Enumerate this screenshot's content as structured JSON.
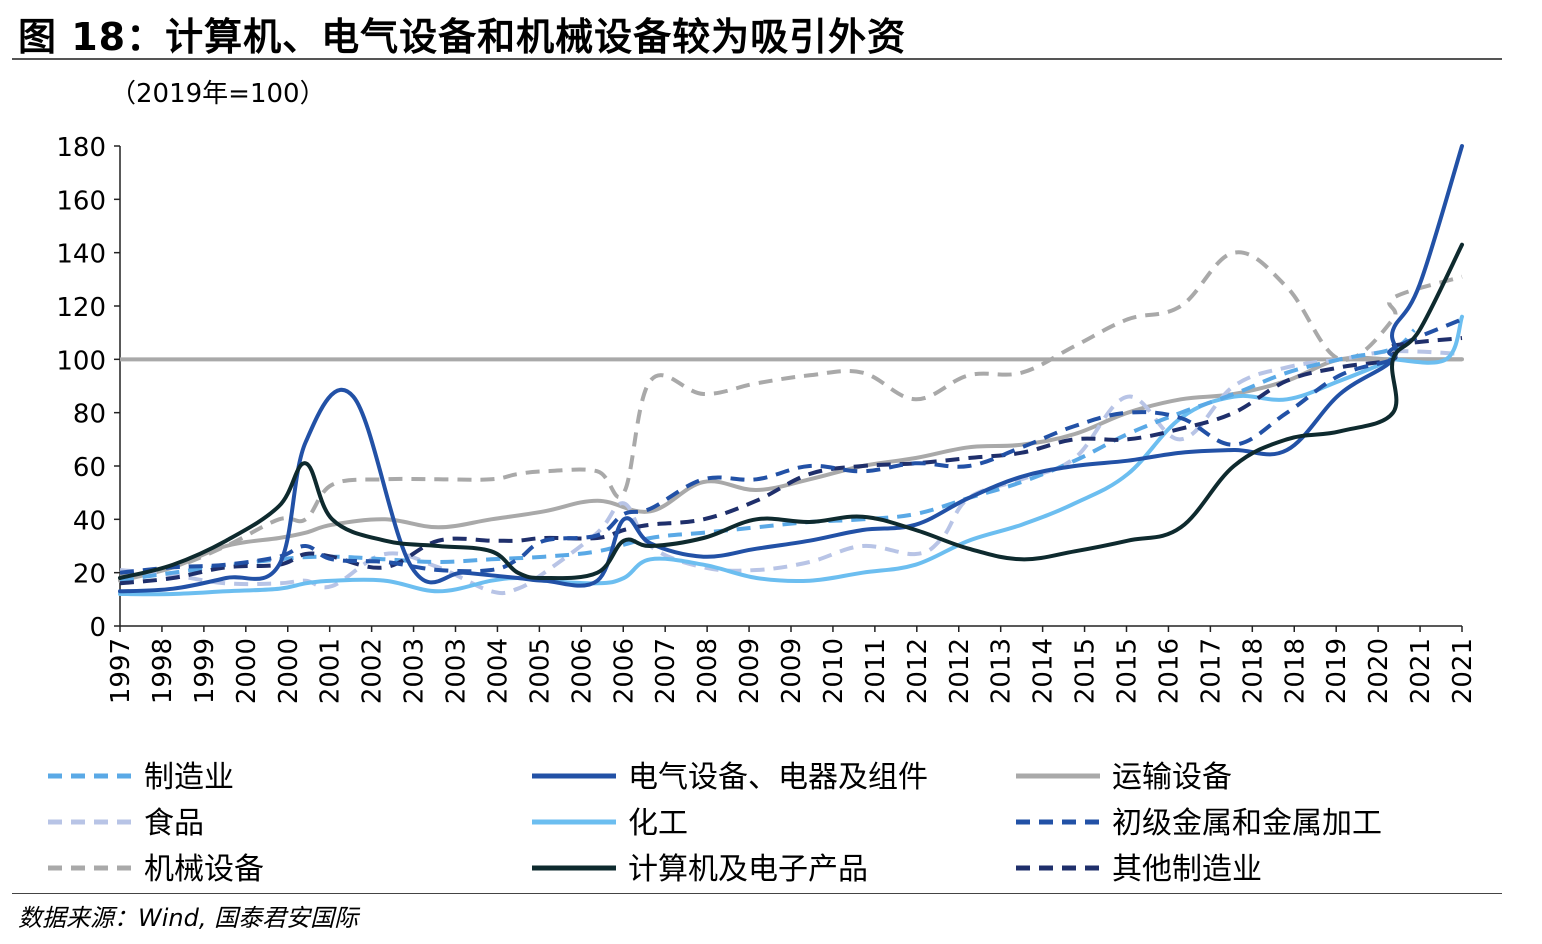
{
  "figure_title": "图 18：计算机、电气设备和机械设备较为吸引外资",
  "source": "数据来源：Wind, 国泰君安国际",
  "chart_data": {
    "type": "line",
    "unit_label": "（2019年=100）",
    "ylim": [
      0,
      180
    ],
    "yticks": [
      0,
      20,
      40,
      60,
      80,
      100,
      120,
      140,
      160,
      180
    ],
    "x_tick_labels": [
      "1997",
      "1998",
      "1999",
      "2000",
      "2000",
      "2001",
      "2002",
      "2003",
      "2003",
      "2004",
      "2005",
      "2006",
      "2006",
      "2007",
      "2008",
      "2009",
      "2009",
      "2010",
      "2011",
      "2012",
      "2012",
      "2013",
      "2014",
      "2015",
      "2015",
      "2016",
      "2017",
      "2018",
      "2018",
      "2019",
      "2020",
      "2021",
      "2021"
    ],
    "x": [
      1997,
      1998,
      1999,
      2000,
      2001,
      2002,
      2003,
      2004,
      2005,
      2006,
      2007,
      2008,
      2009,
      2010,
      2011,
      2012,
      2013,
      2014,
      2015,
      2016,
      2017,
      2018,
      2019,
      2020,
      2021
    ],
    "reference_line": 100,
    "series": [
      {
        "name": "制造业",
        "color": "#5AA9E6",
        "dash": "dashed",
        "points": [
          [
            1997,
            17
          ],
          [
            1998,
            20
          ],
          [
            2000,
            25
          ],
          [
            2001,
            26
          ],
          [
            2002,
            25
          ],
          [
            2003,
            24
          ],
          [
            2004,
            25
          ],
          [
            2005,
            26
          ],
          [
            2006,
            28
          ],
          [
            2007,
            33
          ],
          [
            2008,
            35
          ],
          [
            2009,
            37
          ],
          [
            2010,
            39
          ],
          [
            2011,
            40
          ],
          [
            2012,
            42
          ],
          [
            2013,
            48
          ],
          [
            2014,
            54
          ],
          [
            2015,
            62
          ],
          [
            2016,
            72
          ],
          [
            2017,
            80
          ],
          [
            2018,
            87
          ],
          [
            2019,
            95
          ],
          [
            2020,
            100
          ],
          [
            2021,
            104
          ],
          [
            2021.4,
            111
          ]
        ]
      },
      {
        "name": "电气设备、电器及组件",
        "color": "#2251A6",
        "dash": "solid",
        "points": [
          [
            1997,
            13
          ],
          [
            1998,
            14
          ],
          [
            1999,
            18
          ],
          [
            2000,
            23
          ],
          [
            2000.5,
            69
          ],
          [
            2001.4,
            86
          ],
          [
            2002.5,
            22
          ],
          [
            2003.5,
            20
          ],
          [
            2004.5,
            18
          ],
          [
            2005,
            17
          ],
          [
            2006,
            17
          ],
          [
            2006.5,
            40
          ],
          [
            2007,
            31
          ],
          [
            2008,
            26
          ],
          [
            2009,
            29
          ],
          [
            2010,
            32
          ],
          [
            2011,
            36
          ],
          [
            2012,
            38
          ],
          [
            2013,
            48
          ],
          [
            2014,
            56
          ],
          [
            2015,
            60
          ],
          [
            2016,
            62
          ],
          [
            2017,
            65
          ],
          [
            2018,
            66
          ],
          [
            2019,
            66
          ],
          [
            2020,
            87
          ],
          [
            2021,
            100
          ],
          [
            2021,
            111
          ],
          [
            2021.5,
            128
          ],
          [
            2022.3,
            180
          ]
        ]
      },
      {
        "name": "运输设备",
        "color": "#A9A9A9",
        "dash": "solid",
        "points": [
          [
            1997,
            17
          ],
          [
            1998,
            22
          ],
          [
            1999,
            30
          ],
          [
            2000,
            33
          ],
          [
            2000.5,
            35
          ],
          [
            2001,
            38
          ],
          [
            2002,
            40
          ],
          [
            2003,
            37
          ],
          [
            2004,
            40
          ],
          [
            2005,
            43
          ],
          [
            2006,
            47
          ],
          [
            2007,
            43
          ],
          [
            2008,
            54
          ],
          [
            2009,
            51
          ],
          [
            2010,
            55
          ],
          [
            2011,
            60
          ],
          [
            2012,
            63
          ],
          [
            2013,
            67
          ],
          [
            2014,
            68
          ],
          [
            2015,
            72
          ],
          [
            2016,
            80
          ],
          [
            2017,
            85
          ],
          [
            2018,
            87
          ],
          [
            2019,
            92
          ],
          [
            2020,
            100
          ],
          [
            2021,
            100
          ],
          [
            2022.3,
            100
          ]
        ]
      },
      {
        "name": "食品",
        "color": "#B8C4E6",
        "dash": "dashed",
        "points": [
          [
            1997,
            21
          ],
          [
            1998,
            19
          ],
          [
            1999,
            16
          ],
          [
            2000,
            16
          ],
          [
            2000.5,
            17
          ],
          [
            2001,
            15
          ],
          [
            2002,
            27
          ],
          [
            2003,
            22
          ],
          [
            2004,
            13
          ],
          [
            2004.5,
            14
          ],
          [
            2005,
            20
          ],
          [
            2006,
            35
          ],
          [
            2006.5,
            46
          ],
          [
            2007,
            30
          ],
          [
            2008,
            22
          ],
          [
            2009,
            21
          ],
          [
            2010,
            24
          ],
          [
            2011,
            30
          ],
          [
            2012,
            27
          ],
          [
            2012.5,
            33
          ],
          [
            2013,
            48
          ],
          [
            2014,
            55
          ],
          [
            2015,
            63
          ],
          [
            2016,
            86
          ],
          [
            2017,
            70
          ],
          [
            2018,
            90
          ],
          [
            2019,
            97
          ],
          [
            2020,
            100
          ],
          [
            2021,
            103
          ],
          [
            2022.3,
            102
          ]
        ]
      },
      {
        "name": "化工",
        "color": "#6CBEF0",
        "dash": "solid",
        "points": [
          [
            1997,
            12
          ],
          [
            1998,
            12
          ],
          [
            1999,
            13
          ],
          [
            2000,
            14
          ],
          [
            2000.5,
            16
          ],
          [
            2001,
            17
          ],
          [
            2002,
            17
          ],
          [
            2003,
            13
          ],
          [
            2004,
            17
          ],
          [
            2004.5,
            18
          ],
          [
            2005,
            17
          ],
          [
            2006,
            16
          ],
          [
            2006.5,
            18
          ],
          [
            2007,
            25
          ],
          [
            2008,
            23
          ],
          [
            2009,
            18
          ],
          [
            2010,
            17
          ],
          [
            2011,
            20
          ],
          [
            2012,
            23
          ],
          [
            2013,
            32
          ],
          [
            2014,
            38
          ],
          [
            2015,
            46
          ],
          [
            2016,
            57
          ],
          [
            2017,
            78
          ],
          [
            2018,
            86
          ],
          [
            2019,
            85
          ],
          [
            2020,
            92
          ],
          [
            2021,
            100
          ],
          [
            2021,
            100
          ],
          [
            2022,
            100
          ],
          [
            2022.3,
            116
          ]
        ]
      },
      {
        "name": "初级金属和金属加工",
        "color": "#2251A6",
        "dash": "dashed",
        "points": [
          [
            1997,
            20
          ],
          [
            1998,
            22
          ],
          [
            1999,
            23
          ],
          [
            2000,
            26
          ],
          [
            2000.5,
            30
          ],
          [
            2001,
            25
          ],
          [
            2002,
            24
          ],
          [
            2003,
            21
          ],
          [
            2004,
            21
          ],
          [
            2004.5,
            25
          ],
          [
            2005,
            32
          ],
          [
            2006,
            34
          ],
          [
            2006.5,
            42
          ],
          [
            2007,
            44
          ],
          [
            2008,
            55
          ],
          [
            2009,
            55
          ],
          [
            2010,
            60
          ],
          [
            2011,
            58
          ],
          [
            2012,
            61
          ],
          [
            2013,
            60
          ],
          [
            2014,
            67
          ],
          [
            2015,
            75
          ],
          [
            2016,
            80
          ],
          [
            2017,
            78
          ],
          [
            2018,
            68
          ],
          [
            2019,
            80
          ],
          [
            2020,
            94
          ],
          [
            2021,
            100
          ],
          [
            2021,
            104
          ],
          [
            2022.3,
            115
          ]
        ]
      },
      {
        "name": "机械设备",
        "color": "#A9A9A9",
        "dash": "dashed",
        "points": [
          [
            1997,
            19
          ],
          [
            1998,
            22
          ],
          [
            1999,
            30
          ],
          [
            2000,
            40
          ],
          [
            2000.5,
            40
          ],
          [
            2001,
            53
          ],
          [
            2002,
            55
          ],
          [
            2003,
            55
          ],
          [
            2004,
            55
          ],
          [
            2004.5,
            57
          ],
          [
            2005,
            58
          ],
          [
            2006,
            58
          ],
          [
            2006.5,
            50
          ],
          [
            2007,
            92
          ],
          [
            2008,
            87
          ],
          [
            2009,
            91
          ],
          [
            2010,
            94
          ],
          [
            2011,
            95
          ],
          [
            2012,
            85
          ],
          [
            2013,
            94
          ],
          [
            2014,
            95
          ],
          [
            2015,
            105
          ],
          [
            2016,
            115
          ],
          [
            2017,
            120
          ],
          [
            2018,
            140
          ],
          [
            2019,
            127
          ],
          [
            2020,
            100
          ],
          [
            2021,
            115
          ],
          [
            2021,
            123
          ],
          [
            2022.3,
            131
          ]
        ]
      },
      {
        "name": "计算机及电子产品",
        "color": "#0E2A2E",
        "dash": "solid",
        "points": [
          [
            1997,
            18
          ],
          [
            1998,
            23
          ],
          [
            1999,
            32
          ],
          [
            2000,
            45
          ],
          [
            2000.5,
            61
          ],
          [
            2001,
            40
          ],
          [
            2002,
            32
          ],
          [
            2003,
            30
          ],
          [
            2004,
            28
          ],
          [
            2004.5,
            20
          ],
          [
            2005,
            18
          ],
          [
            2006,
            20
          ],
          [
            2006.5,
            32
          ],
          [
            2007,
            30
          ],
          [
            2008,
            33
          ],
          [
            2009,
            40
          ],
          [
            2010,
            39
          ],
          [
            2011,
            41
          ],
          [
            2012,
            36
          ],
          [
            2013,
            29
          ],
          [
            2014,
            25
          ],
          [
            2015,
            28
          ],
          [
            2016,
            32
          ],
          [
            2017,
            37
          ],
          [
            2018,
            60
          ],
          [
            2019,
            70
          ],
          [
            2020,
            73
          ],
          [
            2021,
            80
          ],
          [
            2021,
            100
          ],
          [
            2021.5,
            111
          ],
          [
            2022.3,
            143
          ]
        ]
      },
      {
        "name": "其他制造业",
        "color": "#1F2F6B",
        "dash": "dashed",
        "points": [
          [
            1997,
            16
          ],
          [
            1998,
            18
          ],
          [
            1999,
            22
          ],
          [
            2000,
            23
          ],
          [
            2000.5,
            27
          ],
          [
            2001,
            26
          ],
          [
            2002,
            22
          ],
          [
            2003,
            32
          ],
          [
            2004,
            32
          ],
          [
            2004.5,
            32
          ],
          [
            2005,
            33
          ],
          [
            2006,
            33
          ],
          [
            2006.5,
            36
          ],
          [
            2007,
            38
          ],
          [
            2008,
            40
          ],
          [
            2009,
            47
          ],
          [
            2010,
            57
          ],
          [
            2011,
            60
          ],
          [
            2012,
            61
          ],
          [
            2013,
            63
          ],
          [
            2014,
            65
          ],
          [
            2015,
            70
          ],
          [
            2016,
            70
          ],
          [
            2017,
            74
          ],
          [
            2018,
            80
          ],
          [
            2019,
            92
          ],
          [
            2020,
            97
          ],
          [
            2021,
            100
          ],
          [
            2021,
            105
          ],
          [
            2022.3,
            108
          ]
        ]
      }
    ]
  }
}
